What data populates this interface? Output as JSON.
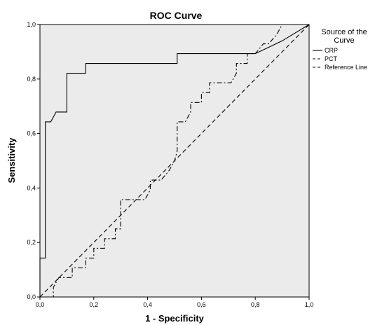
{
  "chart_data": {
    "type": "line",
    "title": "ROC Curve",
    "xlabel": "1 - Specificity",
    "ylabel": "Sensitivity",
    "xlim": [
      0,
      1
    ],
    "ylim": [
      0,
      1
    ],
    "x_ticks": [
      "0,0",
      "0,2",
      "0,4",
      "0,6",
      "0,8",
      "1,0"
    ],
    "y_ticks": [
      "0,0",
      "0,2",
      "0,4",
      "0,6",
      "0,8",
      "1,0"
    ],
    "grid": false,
    "legend": {
      "title_line1": "Source of the",
      "title_line2": "Curve",
      "placement": "right"
    },
    "series": [
      {
        "name": "CRP",
        "style": "solid",
        "color": "#000000",
        "points": [
          [
            0,
            0
          ],
          [
            0,
            0.143
          ],
          [
            0.02,
            0.143
          ],
          [
            0.02,
            0.643
          ],
          [
            0.04,
            0.643
          ],
          [
            0.06,
            0.679
          ],
          [
            0.1,
            0.679
          ],
          [
            0.1,
            0.821
          ],
          [
            0.17,
            0.821
          ],
          [
            0.17,
            0.857
          ],
          [
            0.51,
            0.857
          ],
          [
            0.51,
            0.893
          ],
          [
            0.8,
            0.893
          ],
          [
            0.9,
            0.94
          ],
          [
            1,
            1
          ]
        ]
      },
      {
        "name": "PCT",
        "style": "dashdot",
        "color": "#000000",
        "points": [
          [
            0,
            0
          ],
          [
            0.05,
            0
          ],
          [
            0.05,
            0.036
          ],
          [
            0.07,
            0.071
          ],
          [
            0.12,
            0.071
          ],
          [
            0.12,
            0.107
          ],
          [
            0.17,
            0.107
          ],
          [
            0.17,
            0.143
          ],
          [
            0.2,
            0.143
          ],
          [
            0.2,
            0.179
          ],
          [
            0.24,
            0.179
          ],
          [
            0.24,
            0.214
          ],
          [
            0.28,
            0.214
          ],
          [
            0.28,
            0.25
          ],
          [
            0.3,
            0.25
          ],
          [
            0.3,
            0.357
          ],
          [
            0.39,
            0.357
          ],
          [
            0.41,
            0.393
          ],
          [
            0.41,
            0.429
          ],
          [
            0.45,
            0.429
          ],
          [
            0.48,
            0.464
          ],
          [
            0.5,
            0.5
          ],
          [
            0.51,
            0.536
          ],
          [
            0.51,
            0.643
          ],
          [
            0.54,
            0.643
          ],
          [
            0.56,
            0.679
          ],
          [
            0.56,
            0.714
          ],
          [
            0.6,
            0.714
          ],
          [
            0.6,
            0.75
          ],
          [
            0.63,
            0.75
          ],
          [
            0.63,
            0.786
          ],
          [
            0.71,
            0.786
          ],
          [
            0.73,
            0.821
          ],
          [
            0.73,
            0.857
          ],
          [
            0.77,
            0.857
          ],
          [
            0.77,
            0.893
          ],
          [
            0.8,
            0.893
          ],
          [
            0.83,
            0.929
          ],
          [
            0.85,
            0.929
          ],
          [
            0.88,
            0.964
          ],
          [
            0.9,
            1
          ],
          [
            1,
            1
          ]
        ]
      },
      {
        "name": "Reference Line",
        "style": "dashed",
        "color": "#000000",
        "points": [
          [
            0,
            0
          ],
          [
            1,
            1
          ]
        ]
      }
    ],
    "plot_background": "#ebebeb"
  }
}
